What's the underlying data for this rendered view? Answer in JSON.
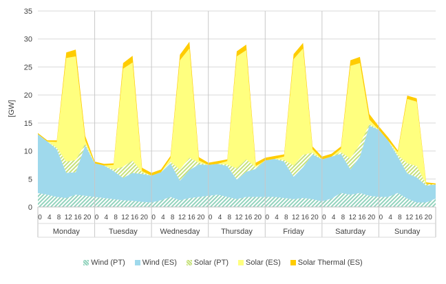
{
  "chart_data": {
    "type": "area",
    "title": "",
    "xlabel": "",
    "ylabel": "[GW]",
    "ylim": [
      0,
      35
    ],
    "yticks": [
      0,
      5,
      10,
      15,
      20,
      25,
      30,
      35
    ],
    "grid": true,
    "legend_position": "bottom",
    "days": [
      "Monday",
      "Tuesday",
      "Wednesday",
      "Thursday",
      "Friday",
      "Saturday",
      "Sunday"
    ],
    "hour_tick_labels": [
      "0",
      "4",
      "8",
      "12",
      "16",
      "20"
    ],
    "hours": [
      0,
      4,
      8,
      12,
      16,
      20,
      24
    ],
    "series": [
      {
        "name": "Wind (PT)",
        "color": "#92d3bd",
        "pattern": "hatch",
        "values": [
          [
            2.5,
            2.2,
            1.8,
            1.6,
            2.2,
            2.0,
            1.8
          ],
          [
            1.8,
            1.6,
            1.4,
            1.2,
            1.1,
            0.9,
            0.8
          ],
          [
            0.9,
            1.2,
            1.8,
            1.2,
            1.6,
            1.8,
            2.0
          ],
          [
            2.0,
            2.2,
            1.8,
            1.4,
            1.8,
            1.8,
            1.8
          ],
          [
            1.8,
            1.8,
            1.6,
            1.4,
            1.6,
            1.4,
            1.0
          ],
          [
            1.0,
            1.5,
            2.5,
            2.2,
            2.5,
            2.0,
            1.8
          ],
          [
            1.8,
            1.8,
            2.5,
            1.5,
            0.8,
            0.8,
            1.5
          ]
        ]
      },
      {
        "name": "Wind (ES)",
        "color": "#9fd9ec",
        "pattern": "solid",
        "values": [
          [
            10.5,
            9.5,
            8.5,
            4.5,
            4.0,
            9.0,
            6.0
          ],
          [
            5.5,
            5.8,
            5.0,
            4.0,
            5.0,
            5.0,
            4.8
          ],
          [
            5.5,
            5.0,
            6.0,
            3.5,
            5.0,
            5.8,
            5.5
          ],
          [
            6.0,
            5.5,
            5.5,
            3.5,
            4.5,
            5.0,
            6.5
          ],
          [
            6.5,
            6.8,
            6.5,
            4.0,
            5.5,
            8.0,
            7.5
          ],
          [
            7.5,
            7.5,
            7.0,
            4.5,
            6.5,
            12.5,
            12.0
          ],
          [
            12.0,
            10.0,
            6.5,
            4.5,
            4.5,
            3.0,
            2.5
          ]
        ]
      },
      {
        "name": "Solar (PT)",
        "color": "#c6e17b",
        "pattern": "hatch",
        "values": [
          [
            0.0,
            0.0,
            0.3,
            2.0,
            2.2,
            0.3,
            0.0
          ],
          [
            0.0,
            0.0,
            0.3,
            2.0,
            2.2,
            0.3,
            0.0
          ],
          [
            0.0,
            0.0,
            0.3,
            2.0,
            2.2,
            0.3,
            0.0
          ],
          [
            0.0,
            0.0,
            0.3,
            2.0,
            2.2,
            0.3,
            0.0
          ],
          [
            0.0,
            0.0,
            0.3,
            2.0,
            2.2,
            0.3,
            0.0
          ],
          [
            0.0,
            0.0,
            0.3,
            2.0,
            2.2,
            0.3,
            0.0
          ],
          [
            0.0,
            0.0,
            0.3,
            1.8,
            2.0,
            0.3,
            0.0
          ]
        ]
      },
      {
        "name": "Solar (ES)",
        "color": "#ffff7f",
        "pattern": "solid",
        "values": [
          [
            0.0,
            0.0,
            1.0,
            18.5,
            18.5,
            0.6,
            0.0
          ],
          [
            0.0,
            0.0,
            0.8,
            17.5,
            17.5,
            0.2,
            0.0
          ],
          [
            0.0,
            0.0,
            0.6,
            19.5,
            19.5,
            0.4,
            0.0
          ],
          [
            0.0,
            0.0,
            0.6,
            20.0,
            19.5,
            0.2,
            0.0
          ],
          [
            0.0,
            0.0,
            0.6,
            19.0,
            19.0,
            0.6,
            0.0
          ],
          [
            0.0,
            0.0,
            0.6,
            16.5,
            14.5,
            0.8,
            0.0
          ],
          [
            0.0,
            0.0,
            0.5,
            11.5,
            11.5,
            0.0,
            0.0
          ]
        ]
      },
      {
        "name": "Solar Thermal (ES)",
        "color": "#ffcc00",
        "pattern": "solid",
        "values": [
          [
            0.2,
            0.2,
            0.3,
            1.0,
            1.2,
            0.8,
            0.3
          ],
          [
            0.3,
            0.3,
            0.3,
            1.0,
            1.2,
            0.6,
            0.5
          ],
          [
            0.5,
            0.5,
            0.4,
            1.0,
            1.2,
            0.6,
            0.4
          ],
          [
            0.4,
            0.5,
            0.3,
            0.9,
            1.0,
            0.6,
            0.5
          ],
          [
            0.5,
            0.5,
            0.4,
            0.9,
            1.0,
            0.5,
            0.5
          ],
          [
            0.5,
            0.5,
            0.4,
            1.0,
            1.1,
            1.0,
            0.6
          ],
          [
            0.6,
            0.6,
            0.3,
            0.6,
            0.6,
            0.3,
            0.2
          ]
        ]
      }
    ]
  }
}
